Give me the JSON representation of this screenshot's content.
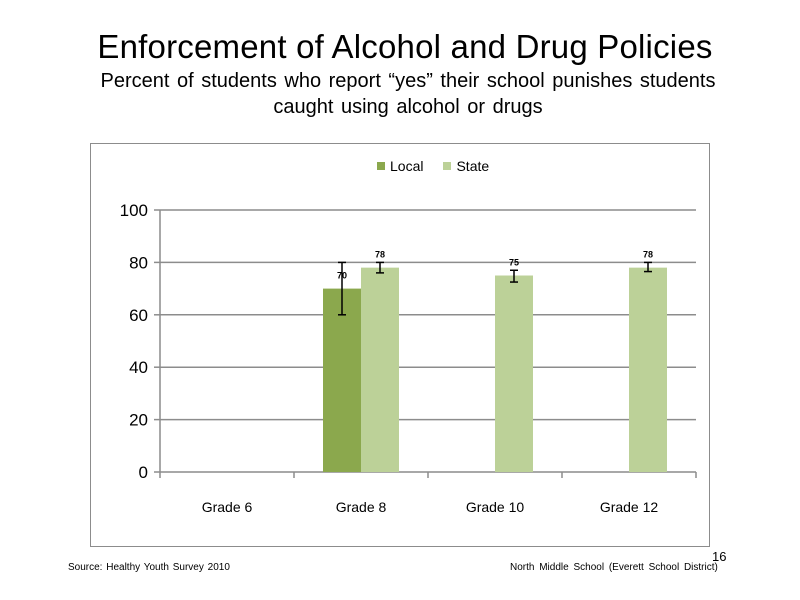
{
  "slide": {
    "title": "Enforcement of Alcohol and Drug Policies",
    "subtitle_line1": "Percent of students who report “yes” their school punishes students",
    "subtitle_line2": "caught using alcohol or drugs",
    "source": "Source: Healthy Youth Survey 2010",
    "school": "North Middle School (Everett School District)",
    "page_number": "16"
  },
  "chart_data": {
    "type": "bar",
    "title": "",
    "xlabel": "",
    "ylabel": "",
    "categories": [
      "Grade 6",
      "Grade 8",
      "Grade 10",
      "Grade 12"
    ],
    "ylim": [
      0,
      100
    ],
    "yticks": [
      0,
      20,
      40,
      60,
      80,
      100
    ],
    "grid": true,
    "legend_position": "top",
    "series": [
      {
        "name": "Local",
        "color": "#8BA84D",
        "values": [
          null,
          70,
          null,
          null
        ],
        "error_low": [
          null,
          60,
          null,
          null
        ],
        "error_high": [
          null,
          80,
          null,
          null
        ]
      },
      {
        "name": "State",
        "color": "#BCD198",
        "values": [
          null,
          78,
          75,
          78
        ],
        "error_low": [
          null,
          76,
          72.5,
          76.5
        ],
        "error_high": [
          null,
          80,
          77,
          80
        ]
      }
    ],
    "data_labels": [
      {
        "series": "Local",
        "category": "Grade 8",
        "text": "70"
      },
      {
        "series": "State",
        "category": "Grade 8",
        "text": "78"
      },
      {
        "series": "State",
        "category": "Grade 10",
        "text": "75"
      },
      {
        "series": "State",
        "category": "Grade 12",
        "text": "78"
      }
    ]
  }
}
